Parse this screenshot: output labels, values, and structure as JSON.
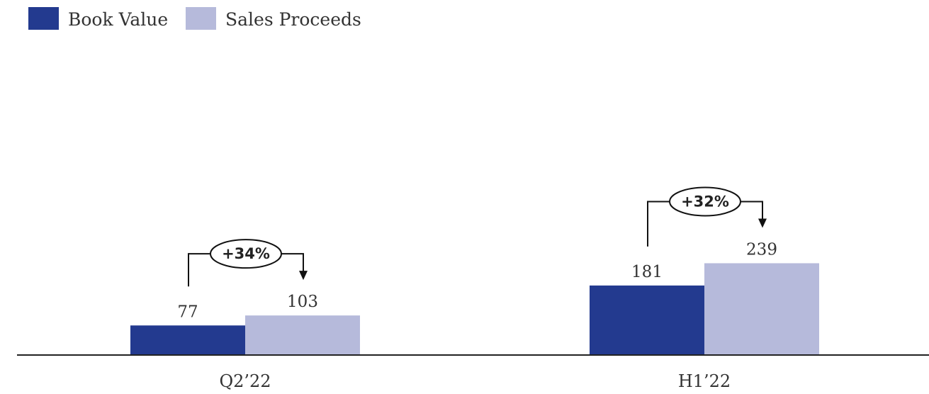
{
  "chart_data": {
    "type": "bar",
    "categories": [
      "Q2’22",
      "H1’22"
    ],
    "series": [
      {
        "name": "Book Value",
        "values": [
          77,
          181
        ],
        "color": "#233a8f"
      },
      {
        "name": "Sales Proceeds",
        "values": [
          103,
          239
        ],
        "color": "#b6badb"
      }
    ],
    "annotations": [
      {
        "category": "Q2’22",
        "text": "+34%"
      },
      {
        "category": "H1’22",
        "text": "+32%"
      }
    ],
    "legend_position": "top-left",
    "grid": false,
    "ylim": [
      0,
      300
    ]
  }
}
